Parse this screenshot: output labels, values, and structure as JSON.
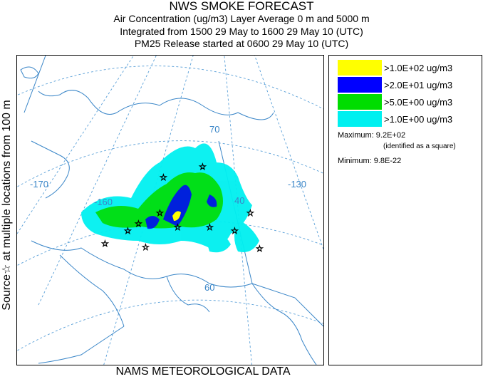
{
  "title": {
    "main": "NWS SMOKE FORECAST",
    "line1": "Air Concentration (ug/m3) Layer Average    0 m and  5000 m",
    "line2": "Integrated from 1500 29 May to 1600 29 May 10 (UTC)",
    "line3": "PM25 Release started at 0600 29 May 10 (UTC)"
  },
  "side_label": "Source☆ at multiple locations   from   100 m",
  "footer": "NAMS METEOROLOGICAL DATA",
  "legend": {
    "items": [
      {
        "label": ">1.0E+02 ug/m3",
        "color": "#ffff00"
      },
      {
        "label": ">2.0E+01 ug/m3",
        "color": "#0000ff"
      },
      {
        "label": ">5.0E+00 ug/m3",
        "color": "#00dd00"
      },
      {
        "label": ">1.0E+00 ug/m3",
        "color": "#00f0f0"
      }
    ],
    "maximum_label": "Maximum: 9.2E+02",
    "maximum_note": "(identified as a square)",
    "minimum_label": "Minimum: 9.8E-22"
  },
  "map": {
    "grid_labels": {
      "lon_170": "-170",
      "lon_160": "-160",
      "lon_140": "40",
      "lon_130": "-130",
      "lat_70": "70",
      "lat_60": "60"
    },
    "colors": {
      "coast": "#3a86c8",
      "grid": "#5aa0d8",
      "source_star": "#000000"
    }
  }
}
